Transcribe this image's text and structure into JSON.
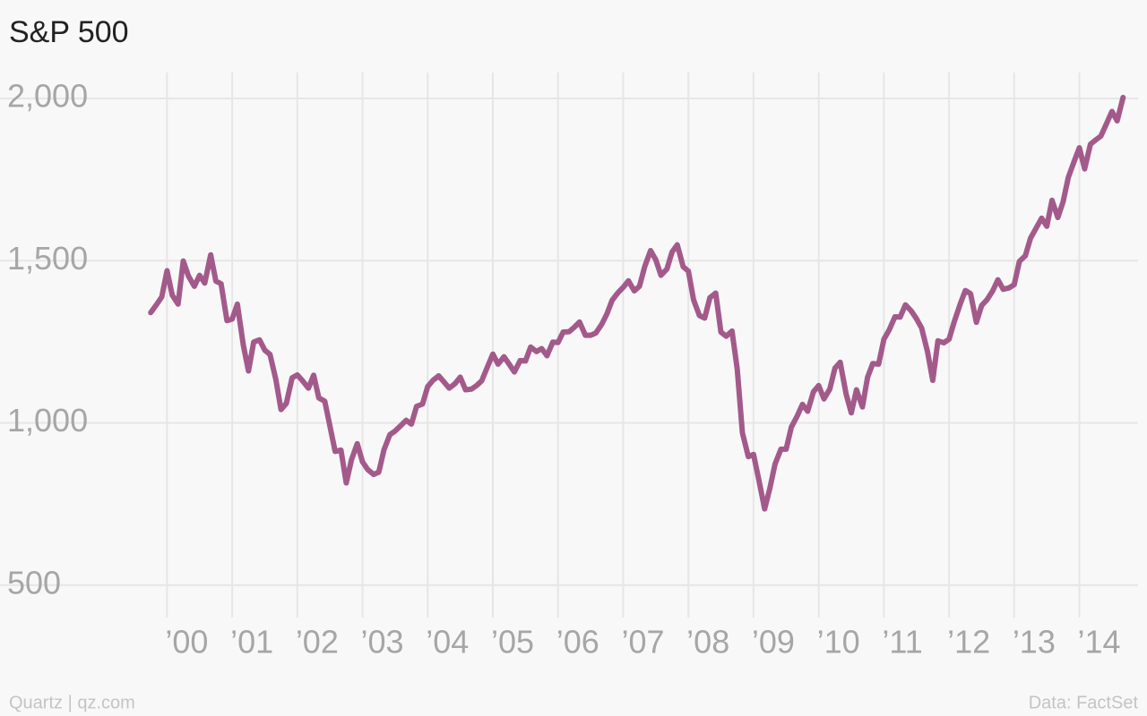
{
  "chart_data": {
    "type": "line",
    "title": "S&P 500",
    "source": "Data: FactSet",
    "credit": "Quartz | qz.com",
    "color": "#a35a8b",
    "grid": true,
    "xlim": [
      1998.95,
      2014.9
    ],
    "ylim": [
      400,
      2080
    ],
    "yticks": [
      500,
      {
        "value": 1000,
        "label": "1,000"
      },
      {
        "value": 1500,
        "label": "1,500"
      },
      {
        "value": 2000,
        "label": "2,000"
      }
    ],
    "xticks": [
      {
        "value": 2000,
        "label": "’00"
      },
      {
        "value": 2001,
        "label": "’01"
      },
      {
        "value": 2002,
        "label": "’02"
      },
      {
        "value": 2003,
        "label": "’03"
      },
      {
        "value": 2004,
        "label": "’04"
      },
      {
        "value": 2005,
        "label": "’05"
      },
      {
        "value": 2006,
        "label": "’06"
      },
      {
        "value": 2007,
        "label": "’07"
      },
      {
        "value": 2008,
        "label": "’08"
      },
      {
        "value": 2009,
        "label": "’09"
      },
      {
        "value": 2010,
        "label": "’10"
      },
      {
        "value": 2011,
        "label": "’11"
      },
      {
        "value": 2012,
        "label": "’12"
      },
      {
        "value": 2013,
        "label": "’13"
      },
      {
        "value": 2014,
        "label": "’14"
      }
    ],
    "x": [
      1999.75,
      1999.83,
      1999.92,
      2000.0,
      2000.08,
      2000.17,
      2000.25,
      2000.33,
      2000.42,
      2000.5,
      2000.58,
      2000.67,
      2000.75,
      2000.83,
      2000.92,
      2001.0,
      2001.08,
      2001.17,
      2001.25,
      2001.33,
      2001.42,
      2001.5,
      2001.58,
      2001.67,
      2001.75,
      2001.83,
      2001.92,
      2002.0,
      2002.08,
      2002.17,
      2002.25,
      2002.33,
      2002.42,
      2002.5,
      2002.58,
      2002.67,
      2002.75,
      2002.83,
      2002.92,
      2003.0,
      2003.08,
      2003.17,
      2003.25,
      2003.33,
      2003.42,
      2003.5,
      2003.58,
      2003.67,
      2003.75,
      2003.83,
      2003.92,
      2004.0,
      2004.08,
      2004.17,
      2004.25,
      2004.33,
      2004.42,
      2004.5,
      2004.58,
      2004.67,
      2004.75,
      2004.83,
      2004.92,
      2005.0,
      2005.08,
      2005.17,
      2005.25,
      2005.33,
      2005.42,
      2005.5,
      2005.58,
      2005.67,
      2005.75,
      2005.83,
      2005.92,
      2006.0,
      2006.08,
      2006.17,
      2006.25,
      2006.33,
      2006.42,
      2006.5,
      2006.58,
      2006.67,
      2006.75,
      2006.83,
      2006.92,
      2007.0,
      2007.08,
      2007.17,
      2007.25,
      2007.33,
      2007.42,
      2007.5,
      2007.58,
      2007.67,
      2007.75,
      2007.83,
      2007.92,
      2008.0,
      2008.08,
      2008.17,
      2008.25,
      2008.33,
      2008.42,
      2008.5,
      2008.58,
      2008.67,
      2008.75,
      2008.83,
      2008.92,
      2009.0,
      2009.08,
      2009.17,
      2009.25,
      2009.33,
      2009.42,
      2009.5,
      2009.58,
      2009.67,
      2009.75,
      2009.83,
      2009.92,
      2010.0,
      2010.08,
      2010.17,
      2010.25,
      2010.33,
      2010.42,
      2010.5,
      2010.58,
      2010.67,
      2010.75,
      2010.83,
      2010.92,
      2011.0,
      2011.08,
      2011.17,
      2011.25,
      2011.33,
      2011.42,
      2011.5,
      2011.58,
      2011.67,
      2011.75,
      2011.83,
      2011.92,
      2012.0,
      2012.08,
      2012.17,
      2012.25,
      2012.33,
      2012.42,
      2012.5,
      2012.58,
      2012.67,
      2012.75,
      2012.83,
      2012.92,
      2013.0,
      2013.08,
      2013.17,
      2013.25,
      2013.33,
      2013.42,
      2013.5,
      2013.58,
      2013.67,
      2013.75,
      2013.83,
      2013.92,
      2014.0,
      2014.08,
      2014.17,
      2014.25,
      2014.33,
      2014.42,
      2014.5,
      2014.58,
      2014.67
    ],
    "values": [
      1340,
      1362,
      1388,
      1469,
      1394,
      1366,
      1499,
      1452,
      1421,
      1455,
      1431,
      1518,
      1437,
      1429,
      1315,
      1320,
      1366,
      1240,
      1160,
      1249,
      1256,
      1224,
      1211,
      1134,
      1041,
      1060,
      1139,
      1148,
      1130,
      1107,
      1147,
      1077,
      1067,
      990,
      912,
      916,
      815,
      886,
      936,
      880,
      856,
      841,
      848,
      917,
      964,
      975,
      990,
      1008,
      996,
      1051,
      1058,
      1112,
      1131,
      1145,
      1126,
      1107,
      1121,
      1141,
      1102,
      1104,
      1115,
      1130,
      1174,
      1212,
      1181,
      1204,
      1181,
      1157,
      1192,
      1191,
      1234,
      1220,
      1229,
      1207,
      1249,
      1248,
      1280,
      1281,
      1295,
      1311,
      1270,
      1270,
      1277,
      1304,
      1336,
      1378,
      1401,
      1418,
      1438,
      1407,
      1421,
      1482,
      1531,
      1503,
      1455,
      1474,
      1527,
      1549,
      1481,
      1468,
      1379,
      1331,
      1323,
      1386,
      1400,
      1280,
      1267,
      1283,
      1166,
      969,
      896,
      903,
      826,
      735,
      798,
      873,
      919,
      919,
      987,
      1021,
      1057,
      1036,
      1096,
      1115,
      1074,
      1104,
      1169,
      1187,
      1089,
      1031,
      1102,
      1049,
      1141,
      1183,
      1181,
      1258,
      1286,
      1327,
      1326,
      1364,
      1345,
      1321,
      1292,
      1219,
      1131,
      1253,
      1247,
      1258,
      1312,
      1366,
      1408,
      1398,
      1310,
      1362,
      1379,
      1407,
      1441,
      1412,
      1416,
      1426,
      1498,
      1515,
      1569,
      1598,
      1631,
      1606,
      1686,
      1633,
      1682,
      1757,
      1806,
      1848,
      1783,
      1859,
      1872,
      1884,
      1924,
      1960,
      1931,
      2003
    ]
  }
}
